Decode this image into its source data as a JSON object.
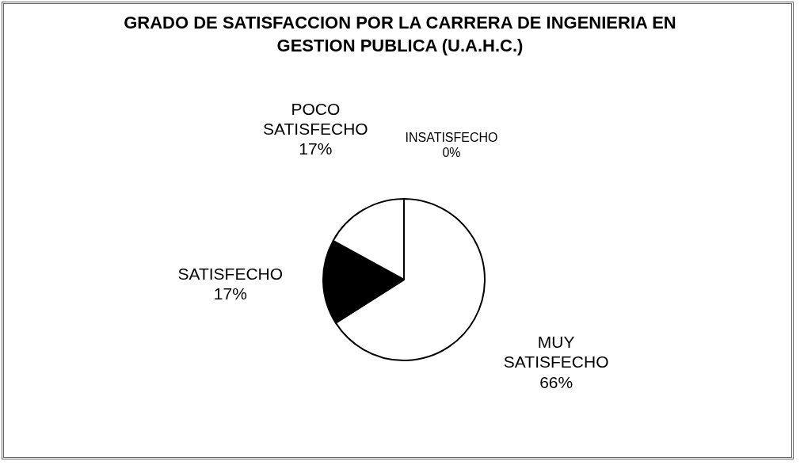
{
  "chart_data": {
    "type": "pie",
    "title": "GRADO DE SATISFACCION  POR LA CARRERA DE INGENIERIA EN GESTION PUBLICA (U.A.H.C.)",
    "categories": [
      "INSATISFECHO",
      "POCO SATISFECHO",
      "SATISFECHO",
      "MUY SATISFECHO"
    ],
    "values": [
      0,
      17,
      17,
      66
    ],
    "colors": [
      "#ffffff",
      "#ffffff",
      "#000000",
      "#ffffff"
    ],
    "value_labels": [
      "0%",
      "17%",
      "17%",
      "66%"
    ],
    "legend": false
  }
}
